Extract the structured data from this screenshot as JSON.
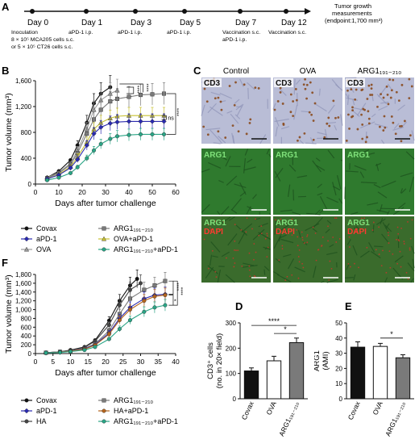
{
  "panel_letters": {
    "a": "A",
    "b": "B",
    "c": "C",
    "d": "D",
    "e": "E",
    "f": "F"
  },
  "timeline": {
    "days": [
      {
        "label": "Day 0",
        "events": [
          "Inoculation",
          "8 × 10⁵ MCA205 cells s.c.",
          "or 5 × 10⁵ CT26 cells s.c."
        ]
      },
      {
        "label": "Day 1",
        "events": [
          "aPD-1 i.p."
        ]
      },
      {
        "label": "Day 3",
        "events": [
          "aPD-1 i.p."
        ]
      },
      {
        "label": "Day 5",
        "events": [
          "aPD-1 i.p."
        ]
      },
      {
        "label": "Day 7",
        "events": [
          "Vaccination s.c.",
          "aPD-1 i.p."
        ]
      },
      {
        "label": "Day 12",
        "events": [
          "Vaccination s.c."
        ]
      }
    ],
    "endpoint": [
      "Tumor growth",
      "measurements",
      "(endpoint:1,700 mm³)"
    ]
  },
  "panel_c": {
    "columns": [
      "Control",
      "OVA",
      "ARG1₁₉₁₋₂₁₀"
    ],
    "row_labels": [
      [
        "CD3"
      ],
      [
        "ARG1"
      ],
      [
        "ARG1",
        "DAPI"
      ]
    ],
    "colors": {
      "cd3_bg": "#b9bdd6",
      "cd3_spot": "#8a4a1e",
      "green": "#2f7a2e",
      "green_dark": "#1b4e1c",
      "merge_bg": "#3a6b2c",
      "dapi": "#c0392b",
      "label_green": "#7fe07a",
      "label_red": "#ff3b30",
      "scale_bar": "#ffffff"
    }
  },
  "legend_b": [
    {
      "name": "Covax",
      "color": "#111111",
      "marker": "circle"
    },
    {
      "name": "ARG1₁₉₁₋₂₁₀",
      "color": "#7a7a7a",
      "marker": "square"
    },
    {
      "name": "aPD-1",
      "color": "#2a2ab0",
      "marker": "diamond"
    },
    {
      "name": "OVA+aPD-1",
      "color": "#c9c232",
      "marker": "triangle"
    },
    {
      "name": "OVA",
      "color": "#9a9a9a",
      "marker": "triangle"
    },
    {
      "name": "ARG1₁₉₁₋₂₁₀+aPD-1",
      "color": "#2aa586",
      "marker": "circle"
    }
  ],
  "legend_f": [
    {
      "name": "Covax",
      "color": "#111111",
      "marker": "circle"
    },
    {
      "name": "ARG1₁₉₁₋₂₁₀",
      "color": "#7a7a7a",
      "marker": "square"
    },
    {
      "name": "aPD-1",
      "color": "#2a2ab0",
      "marker": "diamond"
    },
    {
      "name": "HA+aPD-1",
      "color": "#b5651d",
      "marker": "circle"
    },
    {
      "name": "HA",
      "color": "#444444",
      "marker": "circle"
    },
    {
      "name": "ARG1₁₉₁₋₂₁₀+aPD-1",
      "color": "#2aa586",
      "marker": "circle"
    }
  ],
  "chart_data": [
    {
      "id": "B",
      "type": "line",
      "xlabel": "Days after tumor challenge",
      "ylabel": "Tumor volume (mm³)",
      "xlim": [
        0,
        60
      ],
      "ylim": [
        0,
        1600
      ],
      "xticks": [
        0,
        10,
        20,
        30,
        40,
        50,
        60
      ],
      "yticks": [
        0,
        400,
        800,
        1200,
        1600
      ],
      "ytick_labels": [
        "0",
        "400",
        "800",
        "1,200",
        "1,600"
      ],
      "series": [
        {
          "name": "Covax",
          "color": "#111111",
          "x": [
            5,
            10,
            15,
            18,
            22,
            25,
            28,
            32
          ],
          "y": [
            100,
            200,
            370,
            600,
            950,
            1250,
            1400,
            1500
          ]
        },
        {
          "name": "OVA",
          "color": "#9a9a9a",
          "x": [
            5,
            10,
            15,
            18,
            22,
            25,
            28,
            32,
            35
          ],
          "y": [
            100,
            180,
            320,
            520,
            850,
            1150,
            1300,
            1400,
            1450
          ]
        },
        {
          "name": "ARG1₁₉₁₋₂₁₀",
          "color": "#7a7a7a",
          "x": [
            5,
            10,
            15,
            18,
            22,
            25,
            28,
            32,
            35,
            40,
            45,
            50,
            55
          ],
          "y": [
            90,
            170,
            300,
            480,
            780,
            1000,
            1150,
            1280,
            1320,
            1350,
            1380,
            1390,
            1400
          ]
        },
        {
          "name": "OVA+aPD-1",
          "color": "#c9c232",
          "x": [
            5,
            10,
            15,
            18,
            22,
            25,
            28,
            32,
            35,
            40,
            45,
            50,
            55
          ],
          "y": [
            80,
            150,
            270,
            420,
            650,
            850,
            950,
            1020,
            1050,
            1060,
            1060,
            1060,
            1060
          ]
        },
        {
          "name": "aPD-1",
          "color": "#2a2ab0",
          "x": [
            5,
            10,
            15,
            18,
            22,
            25,
            28,
            32,
            35,
            40,
            45,
            50,
            55
          ],
          "y": [
            80,
            140,
            250,
            380,
            600,
            780,
            880,
            940,
            960,
            970,
            970,
            970,
            970
          ]
        },
        {
          "name": "ARG1₁₉₁₋₂₁₀+aPD-1",
          "color": "#2aa586",
          "x": [
            5,
            10,
            15,
            18,
            22,
            25,
            28,
            32,
            35,
            40,
            45,
            50,
            55
          ],
          "y": [
            60,
            100,
            170,
            260,
            400,
            520,
            620,
            700,
            740,
            760,
            770,
            770,
            770
          ]
        }
      ],
      "annotations": [
        "ns",
        "****",
        "****",
        "****"
      ]
    },
    {
      "id": "D",
      "type": "bar",
      "ylabel": "CD3⁺ cells (no. in 20× field)",
      "categories": [
        "Covax",
        "OVA",
        "ARG1₁₉₁₋₂₁₀"
      ],
      "values": [
        110,
        150,
        222
      ],
      "errors": [
        12,
        18,
        18
      ],
      "colors": [
        "#111111",
        "#ffffff",
        "#7a7a7a"
      ],
      "ylim": [
        0,
        300
      ],
      "yticks": [
        0,
        100,
        200,
        300
      ],
      "annotations": [
        "****",
        "*"
      ]
    },
    {
      "id": "E",
      "type": "bar",
      "ylabel": "ARG1 (AMI)",
      "categories": [
        "Covax",
        "OVA",
        "ARG1₁₉₁₋₂₁₀"
      ],
      "values": [
        34,
        34.5,
        27
      ],
      "errors": [
        3.5,
        2,
        2
      ],
      "colors": [
        "#111111",
        "#ffffff",
        "#7a7a7a"
      ],
      "ylim": [
        0,
        50
      ],
      "yticks": [
        0,
        10,
        20,
        30,
        40,
        50
      ],
      "annotations": [
        "*"
      ]
    },
    {
      "id": "F",
      "type": "line",
      "xlabel": "Days after tumor challenge",
      "ylabel": "Tumor volume (mm³)",
      "xlim": [
        0,
        40
      ],
      "ylim": [
        0,
        1800
      ],
      "xticks": [
        0,
        5,
        10,
        15,
        20,
        25,
        30,
        35,
        40
      ],
      "yticks": [
        0,
        200,
        400,
        600,
        800,
        1000,
        1200,
        1400,
        1600,
        1800
      ],
      "ytick_labels": [
        "0",
        "200",
        "400",
        "600",
        "800",
        "1,000",
        "1,200",
        "1,400",
        "1,600",
        "1,800"
      ],
      "series": [
        {
          "name": "Covax",
          "color": "#111111",
          "x": [
            3,
            7,
            10,
            14,
            17,
            21,
            24,
            27,
            29
          ],
          "y": [
            20,
            40,
            80,
            150,
            300,
            750,
            1200,
            1550,
            1700
          ]
        },
        {
          "name": "HA",
          "color": "#444444",
          "x": [
            3,
            7,
            10,
            14,
            17,
            21,
            24,
            27,
            30
          ],
          "y": [
            20,
            40,
            70,
            140,
            280,
            650,
            1100,
            1450,
            1600
          ]
        },
        {
          "name": "ARG1₁₉₁₋₂₁₀",
          "color": "#7a7a7a",
          "x": [
            3,
            7,
            10,
            14,
            17,
            21,
            24,
            27,
            31,
            34,
            37
          ],
          "y": [
            20,
            40,
            60,
            120,
            220,
            520,
            900,
            1250,
            1450,
            1550,
            1650
          ]
        },
        {
          "name": "aPD-1",
          "color": "#2a2ab0",
          "x": [
            3,
            7,
            10,
            14,
            17,
            21,
            24,
            27,
            31,
            34,
            37
          ],
          "y": [
            15,
            30,
            55,
            110,
            200,
            470,
            800,
            1050,
            1250,
            1330,
            1350
          ]
        },
        {
          "name": "HA+aPD-1",
          "color": "#b5651d",
          "x": [
            3,
            7,
            10,
            14,
            17,
            21,
            24,
            27,
            31,
            34,
            37
          ],
          "y": [
            15,
            30,
            55,
            100,
            190,
            440,
            760,
            1000,
            1200,
            1300,
            1330
          ]
        },
        {
          "name": "ARG1₁₉₁₋₂₁₀+aPD-1",
          "color": "#2aa586",
          "x": [
            3,
            7,
            10,
            14,
            17,
            21,
            24,
            27,
            31,
            34,
            37
          ],
          "y": [
            15,
            25,
            45,
            80,
            150,
            330,
            560,
            760,
            950,
            1050,
            1100
          ]
        }
      ],
      "annotations": [
        "****",
        "****",
        "*"
      ]
    }
  ]
}
